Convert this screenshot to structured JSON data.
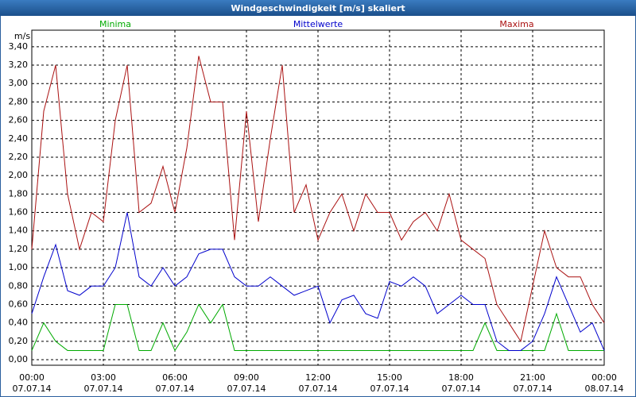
{
  "chart_data": {
    "type": "line",
    "title": "Windgeschwindigkeit [m/s] skaliert",
    "y_label": "m/s",
    "x": [
      0,
      0.5,
      1,
      1.5,
      2,
      2.5,
      3,
      3.5,
      4,
      4.5,
      5,
      5.5,
      6,
      6.5,
      7,
      7.5,
      8,
      8.5,
      9,
      9.5,
      10,
      10.5,
      11,
      11.5,
      12,
      12.5,
      13,
      13.5,
      14,
      14.5,
      15,
      15.5,
      16,
      16.5,
      17,
      17.5,
      18,
      18.5,
      19,
      19.5,
      20,
      20.5,
      21,
      21.5,
      22,
      22.5,
      23,
      23.5,
      24
    ],
    "series": [
      {
        "name": "Minima",
        "color": "#00aa00",
        "values": [
          0.1,
          0.4,
          0.2,
          0.1,
          0.1,
          0.1,
          0.1,
          0.6,
          0.6,
          0.1,
          0.1,
          0.4,
          0.1,
          0.3,
          0.6,
          0.4,
          0.6,
          0.1,
          0.1,
          0.1,
          0.1,
          0.1,
          0.1,
          0.1,
          0.1,
          0.1,
          0.1,
          0.1,
          0.1,
          0.1,
          0.1,
          0.1,
          0.1,
          0.1,
          0.1,
          0.1,
          0.1,
          0.1,
          0.4,
          0.1,
          0.1,
          0.1,
          0.1,
          0.1,
          0.5,
          0.1,
          0.1,
          0.1,
          0.1
        ]
      },
      {
        "name": "Mittelwerte",
        "color": "#0000cc",
        "values": [
          0.5,
          0.9,
          1.25,
          0.75,
          0.7,
          0.8,
          0.8,
          1.0,
          1.6,
          0.9,
          0.8,
          1.0,
          0.8,
          0.9,
          1.15,
          1.2,
          1.2,
          0.9,
          0.8,
          0.8,
          0.9,
          0.8,
          0.7,
          0.75,
          0.8,
          0.4,
          0.65,
          0.7,
          0.5,
          0.45,
          0.85,
          0.8,
          0.9,
          0.8,
          0.5,
          0.6,
          0.7,
          0.6,
          0.6,
          0.2,
          0.1,
          0.1,
          0.2,
          0.5,
          0.9,
          0.6,
          0.3,
          0.4,
          0.1
        ]
      },
      {
        "name": "Maxima",
        "color": "#aa1111",
        "values": [
          1.2,
          2.7,
          3.2,
          1.8,
          1.2,
          1.6,
          1.5,
          2.6,
          3.2,
          1.6,
          1.7,
          2.1,
          1.6,
          2.3,
          3.3,
          2.8,
          2.8,
          1.3,
          2.7,
          1.5,
          2.4,
          3.2,
          1.6,
          1.9,
          1.3,
          1.6,
          1.8,
          1.4,
          1.8,
          1.6,
          1.6,
          1.3,
          1.5,
          1.6,
          1.4,
          1.8,
          1.3,
          1.2,
          1.1,
          0.6,
          0.4,
          0.2,
          0.8,
          1.4,
          1.0,
          0.9,
          0.9,
          0.6,
          0.4
        ]
      }
    ],
    "xlim": [
      0,
      24
    ],
    "xticks": [
      {
        "value": 0,
        "label": "00:00"
      },
      {
        "value": 3,
        "label": "03:00"
      },
      {
        "value": 6,
        "label": "06:00"
      },
      {
        "value": 9,
        "label": "09:00"
      },
      {
        "value": 12,
        "label": "12:00"
      },
      {
        "value": 15,
        "label": "15:00"
      },
      {
        "value": 18,
        "label": "18:00"
      },
      {
        "value": 21,
        "label": "21:00"
      },
      {
        "value": 24,
        "label": "00:00"
      }
    ],
    "xtick_dates": [
      "07.07.14",
      "07.07.14",
      "07.07.14",
      "07.07.14",
      "07.07.14",
      "07.07.14",
      "07.07.14",
      "07.07.14",
      "08.07.14"
    ],
    "ylim": [
      -0.06,
      3.58
    ],
    "yticks": [
      {
        "value": 0,
        "label": "0,00"
      },
      {
        "value": 0.2,
        "label": "0,20"
      },
      {
        "value": 0.4,
        "label": "0,40"
      },
      {
        "value": 0.6,
        "label": "0,60"
      },
      {
        "value": 0.8,
        "label": "0,80"
      },
      {
        "value": 1.0,
        "label": "1,00"
      },
      {
        "value": 1.2,
        "label": "1,20"
      },
      {
        "value": 1.4,
        "label": "1,40"
      },
      {
        "value": 1.6,
        "label": "1,60"
      },
      {
        "value": 1.8,
        "label": "1,80"
      },
      {
        "value": 2.0,
        "label": "2,00"
      },
      {
        "value": 2.2,
        "label": "2,20"
      },
      {
        "value": 2.4,
        "label": "2,40"
      },
      {
        "value": 2.6,
        "label": "2,60"
      },
      {
        "value": 2.8,
        "label": "2,80"
      },
      {
        "value": 3.0,
        "label": "3,00"
      },
      {
        "value": 3.2,
        "label": "3,20"
      },
      {
        "value": 3.4,
        "label": "3,40"
      }
    ],
    "grid": true
  }
}
